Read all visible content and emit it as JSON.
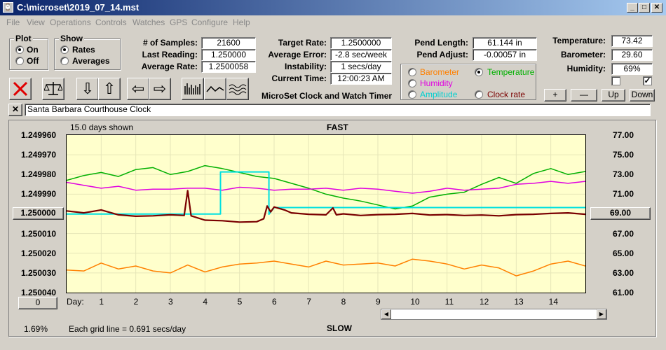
{
  "window": {
    "title": "C:\\microset\\2019_07_14.mst",
    "app_icon": "clock-icon"
  },
  "menu": [
    "File",
    "View",
    "Operations",
    "Controls",
    "Watches",
    "GPS",
    "Configure",
    "Help"
  ],
  "plot_group": {
    "title": "Plot",
    "on": "On",
    "off": "Off",
    "selected": "On"
  },
  "show_group": {
    "title": "Show",
    "rates": "Rates",
    "averages": "Averages",
    "selected": "Rates"
  },
  "stats": {
    "samples_label": "# of Samples:",
    "samples": "21600",
    "last_reading_label": "Last Reading:",
    "last_reading": "1.250000",
    "average_rate_label": "Average Rate:",
    "average_rate": "1.2500058",
    "target_rate_label": "Target Rate:",
    "target_rate": "1.2500000",
    "average_error_label": "Average Error:",
    "average_error": "-2.8 sec/week",
    "instability_label": "Instability:",
    "instability": "1 secs/day",
    "current_time_label": "Current Time:",
    "current_time": "12:00:23 AM",
    "pend_length_label": "Pend Length:",
    "pend_length": "61.144 in",
    "pend_adjust_label": "Pend Adjust:",
    "pend_adjust": "-0.00057 in",
    "temperature_label": "Temperature:",
    "temperature": "73.42",
    "barometer_label": "Barometer:",
    "barometer": "29.60",
    "humidity_label": "Humidity:",
    "humidity": "69%"
  },
  "app_caption": "MicroSet Clock and Watch Timer",
  "sensors": {
    "barometer": "Barometer",
    "temperature": "Temperature",
    "humidity": "Humidity",
    "amplitude": "Amplitude",
    "clock_rate": "Clock rate",
    "selected": "Temperature"
  },
  "colors": {
    "barometer": "#ff8000",
    "temperature": "#00b000",
    "humidity": "#e000e0",
    "amplitude": "#00e0e0",
    "clock_rate": "#7a0000",
    "plot_bg": "#ffffcc"
  },
  "right_buttons": [
    "+",
    "—",
    "Up",
    "Down"
  ],
  "checkboxes": [
    false,
    true
  ],
  "clock_name": "Santa Barbara Courthouse Clock",
  "chart_labels": {
    "days_shown": "15.0 days shown",
    "fast": "FAST",
    "slow": "SLOW",
    "grid_note": "Each grid line = 0.691 secs/day",
    "percent": "1.69%",
    "left_scale_button": "1.250000",
    "right_scale_button": "69.00",
    "zero_button": "0",
    "day_label": "Day:"
  },
  "chart_data": {
    "type": "line",
    "x_label": "Day:",
    "x_ticks": [
      1,
      2,
      3,
      4,
      5,
      6,
      7,
      8,
      9,
      10,
      11,
      12,
      13,
      14
    ],
    "xlim": [
      0,
      15
    ],
    "y_left_ticks": [
      "1.249960",
      "1.249970",
      "1.249980",
      "1.249990",
      "1.250000",
      "1.250010",
      "1.250020",
      "1.250030",
      "1.250040"
    ],
    "y_left_lim": [
      1.25004,
      1.24996
    ],
    "y_right_ticks": [
      "77.00",
      "75.00",
      "73.00",
      "71.00",
      "69.00",
      "67.00",
      "65.00",
      "63.00",
      "61.00"
    ],
    "y_right_lim": [
      61,
      77
    ],
    "series": [
      {
        "name": "Temperature",
        "axis": "right",
        "x": [
          0,
          0.5,
          1,
          1.5,
          2,
          2.5,
          3,
          3.5,
          4,
          4.5,
          5,
          5.5,
          6,
          6.5,
          7,
          7.5,
          8,
          8.5,
          9,
          9.5,
          10,
          10.5,
          11,
          11.5,
          12,
          12.5,
          13,
          13.5,
          14,
          14.5,
          15
        ],
        "values": [
          72.4,
          72.9,
          73.2,
          72.8,
          73.5,
          73.7,
          73.0,
          73.3,
          73.9,
          73.6,
          73.2,
          72.8,
          72.6,
          72.1,
          71.6,
          71.0,
          70.6,
          70.3,
          69.9,
          69.5,
          69.8,
          70.7,
          71.0,
          71.2,
          72.0,
          72.7,
          72.1,
          73.1,
          73.6,
          73.0,
          73.3
        ]
      },
      {
        "name": "Humidity",
        "axis": "right",
        "x": [
          0,
          0.5,
          1,
          1.5,
          2,
          2.5,
          3,
          3.5,
          4,
          4.5,
          5,
          5.5,
          6,
          6.5,
          7,
          7.5,
          8,
          8.5,
          9,
          9.5,
          10,
          10.5,
          11,
          11.5,
          12,
          12.5,
          13,
          13.5,
          14,
          14.5,
          15
        ],
        "values": [
          72.2,
          71.9,
          71.6,
          71.8,
          71.4,
          71.5,
          71.5,
          71.6,
          71.6,
          71.4,
          71.7,
          71.6,
          71.4,
          71.5,
          71.5,
          71.6,
          71.4,
          71.6,
          71.5,
          71.3,
          71.1,
          71.3,
          71.6,
          71.4,
          71.5,
          71.6,
          72.0,
          72.1,
          72.3,
          72.1,
          72.3
        ]
      },
      {
        "name": "Barometer",
        "axis": "right",
        "x": [
          0,
          0.5,
          1,
          1.5,
          2,
          2.5,
          3,
          3.5,
          4,
          4.5,
          5,
          5.5,
          6,
          6.5,
          7,
          7.5,
          8,
          8.5,
          9,
          9.5,
          10,
          10.5,
          11,
          11.5,
          12,
          12.5,
          13,
          13.5,
          14,
          14.5,
          15
        ],
        "values": [
          63.3,
          63.2,
          64.0,
          63.4,
          63.7,
          63.2,
          63.0,
          63.8,
          63.1,
          63.6,
          63.9,
          64.0,
          64.2,
          63.9,
          63.6,
          64.2,
          63.8,
          63.9,
          64.0,
          63.7,
          64.4,
          64.2,
          63.9,
          63.4,
          63.8,
          63.5,
          62.7,
          63.2,
          63.9,
          64.2,
          63.7
        ]
      },
      {
        "name": "Amplitude",
        "axis": "left",
        "x": [
          0,
          4.45,
          4.45,
          5.85,
          5.85,
          6.0,
          15
        ],
        "values": [
          1.2500001,
          1.2500001,
          1.2499787,
          1.2499787,
          1.2500002,
          1.2499968,
          1.2499968
        ]
      },
      {
        "name": "Clock rate",
        "axis": "left",
        "x": [
          0,
          0.5,
          1,
          1.5,
          2,
          2.5,
          3,
          3.4,
          3.5,
          3.6,
          4,
          4.5,
          5,
          5.5,
          5.7,
          5.8,
          5.9,
          6,
          6.3,
          6.5,
          7,
          7.5,
          7.7,
          7.8,
          8,
          8.5,
          9,
          9.5,
          10,
          10.5,
          11,
          11.5,
          12,
          12.5,
          13,
          13.5,
          14,
          14.5,
          15
        ],
        "values": [
          1.2499985,
          1.2499995,
          1.249998,
          1.2500005,
          1.2500012,
          1.250001,
          1.2500005,
          1.2500008,
          1.2499882,
          1.250001,
          1.2500032,
          1.2500035,
          1.2500042,
          1.250004,
          1.2500025,
          1.249996,
          1.249999,
          1.2499965,
          1.249998,
          1.2499995,
          1.2500002,
          1.2500005,
          1.249997,
          1.2500005,
          1.25,
          1.2500008,
          1.2500004,
          1.2500002,
          1.2499998,
          1.2500006,
          1.2500004,
          1.2500008,
          1.2500006,
          1.250001,
          1.2500004,
          1.2500002,
          1.2499998,
          1.2499995,
          1.2500002
        ]
      }
    ]
  }
}
